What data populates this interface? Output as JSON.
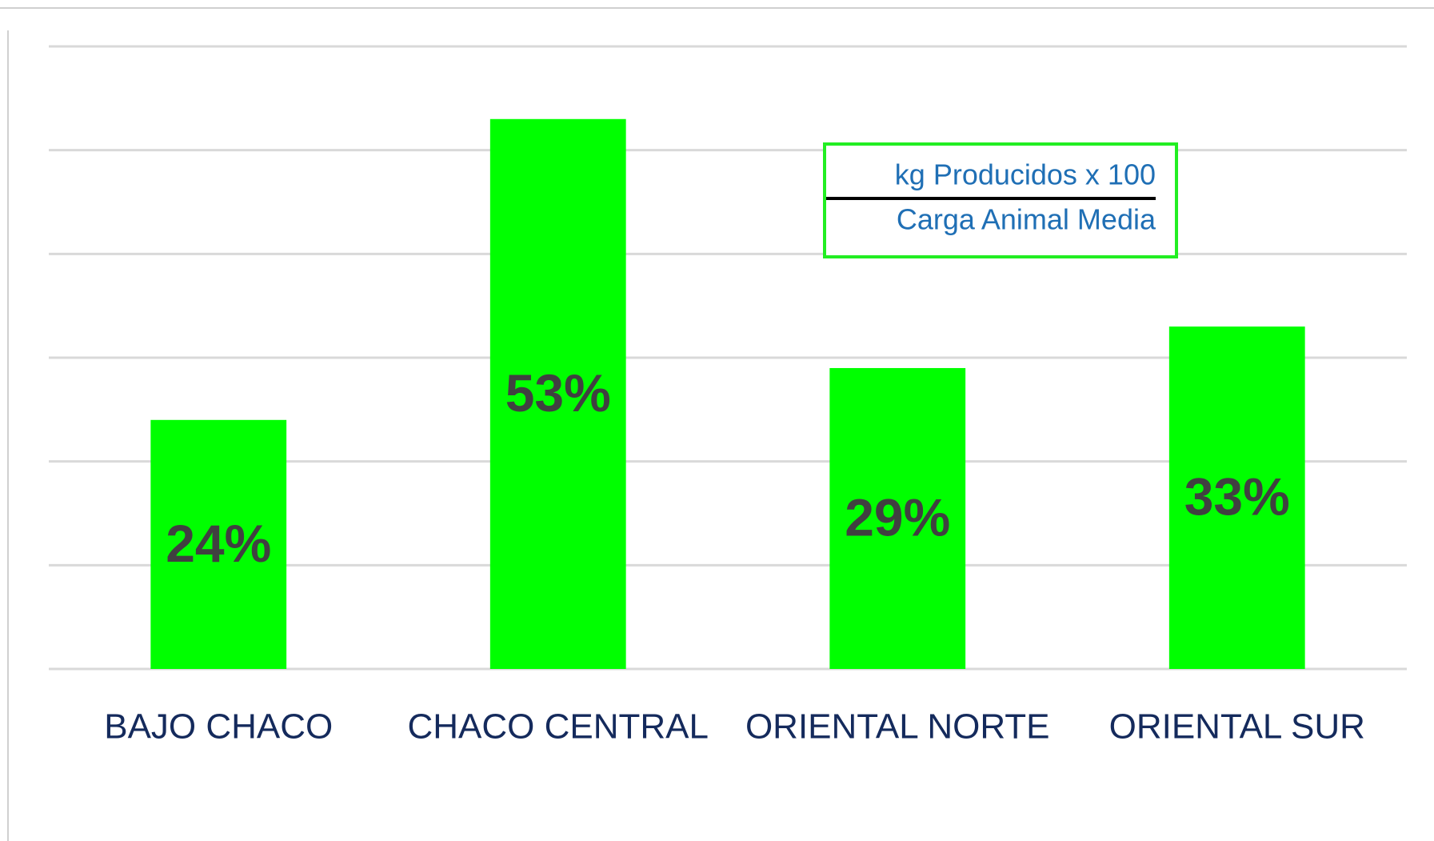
{
  "chart_data": {
    "type": "bar",
    "categories": [
      "BAJO CHACO",
      "CHACO CENTRAL",
      "ORIENTAL NORTE",
      "ORIENTAL SUR"
    ],
    "values": [
      24,
      53,
      29,
      33
    ],
    "value_labels": [
      "24%",
      "53%",
      "29%",
      "33%"
    ],
    "color": "#00ff00",
    "ylim": [
      0,
      60
    ],
    "yticks": [
      0,
      10,
      20,
      30,
      40,
      50,
      60
    ],
    "grid": true,
    "annotations": [
      "kg Producidos x 100",
      "Carga Animal Media"
    ]
  }
}
